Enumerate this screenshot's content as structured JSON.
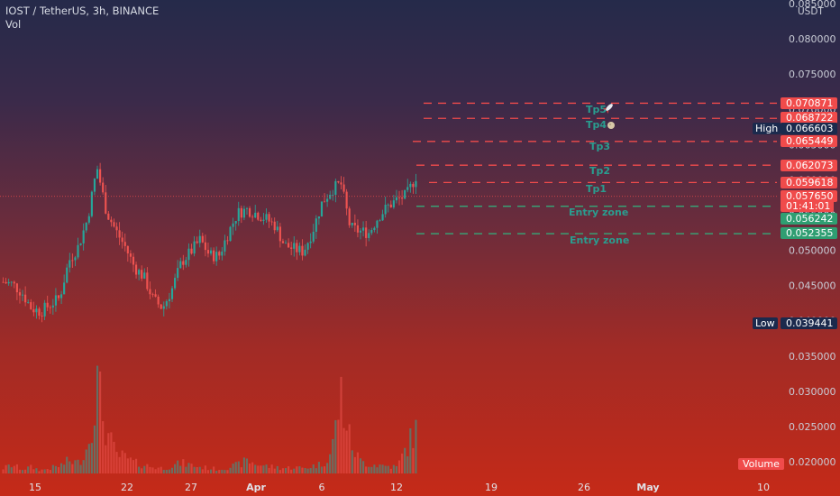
{
  "header": {
    "title": "IOST / TetherUS, 3h, BINANCE",
    "volume_label": "Vol"
  },
  "axis": {
    "currency": "USDT",
    "price_ticks": [
      "0.085000",
      "0.080000",
      "0.075000",
      "0.070000",
      "0.065000",
      "0.060000",
      "0.055000",
      "0.050000",
      "0.045000",
      "0.040000",
      "0.035000",
      "0.030000",
      "0.025000",
      "0.020000"
    ],
    "date_ticks": [
      "15",
      "22",
      "27",
      "Apr",
      "6",
      "12",
      "19",
      "26",
      "May",
      "10"
    ]
  },
  "price_labels": [
    {
      "text": "0.070871",
      "color": "red"
    },
    {
      "text": "0.068722",
      "color": "red"
    },
    {
      "text": "0.066603",
      "color": "dark"
    },
    {
      "text": "0.065449",
      "color": "red"
    },
    {
      "text": "0.062073",
      "color": "red"
    },
    {
      "text": "0.059618",
      "color": "red"
    },
    {
      "text": "0.057650",
      "color": "red"
    },
    {
      "text": "01:41:01",
      "color": "red"
    },
    {
      "text": "0.056242",
      "color": "green"
    },
    {
      "text": "0.052355",
      "color": "green"
    },
    {
      "text": "0.039441",
      "color": "dark"
    }
  ],
  "high_label": "High",
  "low_label": "Low",
  "volume_badge": "Volume",
  "annotations": [
    {
      "text": "Tp5",
      "icon": "rocket-icon",
      "price": 0.070871
    },
    {
      "text": "Tp4",
      "icon": "moon-icon",
      "price": 0.068722
    },
    {
      "text": "Tp3",
      "price": 0.065449
    },
    {
      "text": "Tp2",
      "price": 0.062073
    },
    {
      "text": "Tp1",
      "price": 0.059618
    },
    {
      "text": "Entry zone",
      "price": 0.056242
    },
    {
      "text": "Entry zone",
      "price": 0.052355
    }
  ],
  "colors": {
    "up": "#26a69a",
    "down": "#ef5350",
    "tp_line": "#f04b4b",
    "entry_line": "#2fb57e",
    "annotation_text": "#2a9d8f"
  },
  "chart_data": {
    "type": "candlestick",
    "symbol": "IOST / TetherUS",
    "interval": "3h",
    "exchange": "BINANCE",
    "ylim": [
      0.0185,
      0.0865
    ],
    "last_price": 0.05765,
    "high": 0.066603,
    "low": 0.039441,
    "take_profit_levels": [
      0.059618,
      0.062073,
      0.065449,
      0.068722,
      0.070871
    ],
    "entry_levels": [
      0.056242,
      0.052355
    ],
    "price_path": [
      0.0455,
      0.0452,
      0.044,
      0.0418,
      0.0413,
      0.0423,
      0.0432,
      0.0485,
      0.0505,
      0.0545,
      0.0618,
      0.0555,
      0.0528,
      0.0505,
      0.0476,
      0.0462,
      0.043,
      0.0418,
      0.0445,
      0.0483,
      0.0498,
      0.0515,
      0.0493,
      0.0492,
      0.0525,
      0.0553,
      0.0558,
      0.0552,
      0.0545,
      0.0535,
      0.0507,
      0.0502,
      0.0498,
      0.0528,
      0.0568,
      0.0586,
      0.0595,
      0.0532,
      0.0527,
      0.0525,
      0.0548,
      0.0562,
      0.0572,
      0.0578,
      0.0605
    ],
    "volume_path": [
      0.05,
      0.08,
      0.04,
      0.06,
      0.03,
      0.05,
      0.07,
      0.12,
      0.1,
      0.25,
      0.85,
      0.4,
      0.18,
      0.15,
      0.1,
      0.08,
      0.06,
      0.05,
      0.07,
      0.1,
      0.08,
      0.06,
      0.05,
      0.04,
      0.06,
      0.08,
      0.12,
      0.09,
      0.07,
      0.06,
      0.05,
      0.06,
      0.05,
      0.07,
      0.09,
      0.2,
      0.75,
      0.3,
      0.12,
      0.09,
      0.08,
      0.07,
      0.06,
      0.25,
      0.4
    ]
  }
}
